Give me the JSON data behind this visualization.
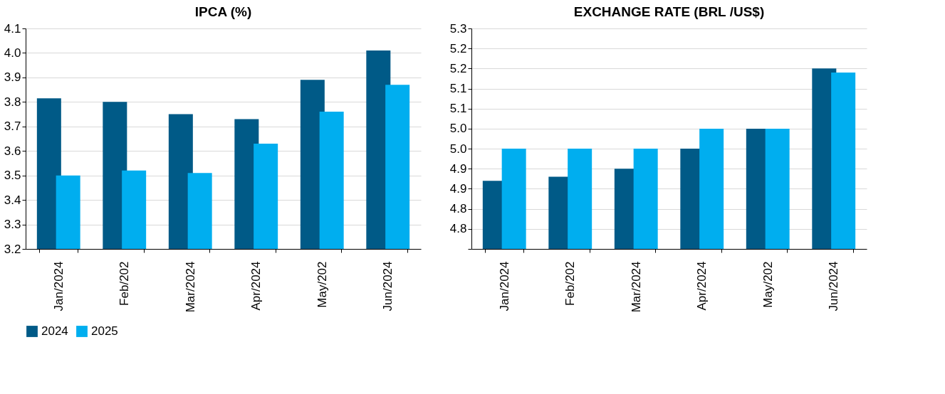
{
  "chart_data": [
    {
      "type": "bar",
      "title": "IPCA (%)",
      "categories": [
        "Jan/2024",
        "Feb/202",
        "Mar/2024",
        "Apr/2024",
        "May/202",
        "Jun/2024"
      ],
      "series": [
        {
          "name": "2024",
          "color": "#005a87",
          "values": [
            3.815,
            3.8,
            3.75,
            3.73,
            3.89,
            4.01
          ]
        },
        {
          "name": "2025",
          "color": "#00aeef",
          "values": [
            3.5,
            3.52,
            3.51,
            3.63,
            3.76,
            3.87
          ]
        }
      ],
      "ylim": [
        3.2,
        4.1
      ],
      "yticks": [
        3.2,
        3.3,
        3.4,
        3.5,
        3.6,
        3.7,
        3.8,
        3.9,
        {
          "value": 4.0,
          "label": "4.0"
        },
        4.1
      ],
      "grid": "y",
      "legend": "bottom"
    },
    {
      "type": "bar",
      "title": "EXCHANGE RATE (BRL /US$)",
      "categories": [
        "Jan/2024",
        "Feb/202",
        "Mar/2024",
        "Apr/2024",
        "May/202",
        "Jun/2024"
      ],
      "series": [
        {
          "name": "2024",
          "color": "#005a87",
          "values": [
            4.87,
            4.88,
            4.9,
            4.95,
            5.0,
            5.15
          ]
        },
        {
          "name": "2025",
          "color": "#00aeef",
          "values": [
            4.95,
            4.95,
            4.95,
            5.0,
            5.0,
            5.14
          ]
        }
      ],
      "ylim": [
        4.7,
        5.25
      ],
      "yticks": [
        {
          "value": 4.7,
          "label": null
        },
        {
          "value": 4.75,
          "label": "4.8"
        },
        {
          "value": 4.8,
          "label": "4.8"
        },
        {
          "value": 4.85,
          "label": "4.9"
        },
        {
          "value": 4.9,
          "label": "4.9"
        },
        {
          "value": 4.95,
          "label": "5.0"
        },
        {
          "value": 5.0,
          "label": "5.0"
        },
        {
          "value": 5.05,
          "label": "5.1"
        },
        {
          "value": 5.1,
          "label": "5.1"
        },
        {
          "value": 5.15,
          "label": "5.2"
        },
        {
          "value": 5.2,
          "label": "5.2"
        },
        {
          "value": 5.25,
          "label": "5.3"
        }
      ],
      "grid": "y",
      "legend": "bottom"
    }
  ]
}
